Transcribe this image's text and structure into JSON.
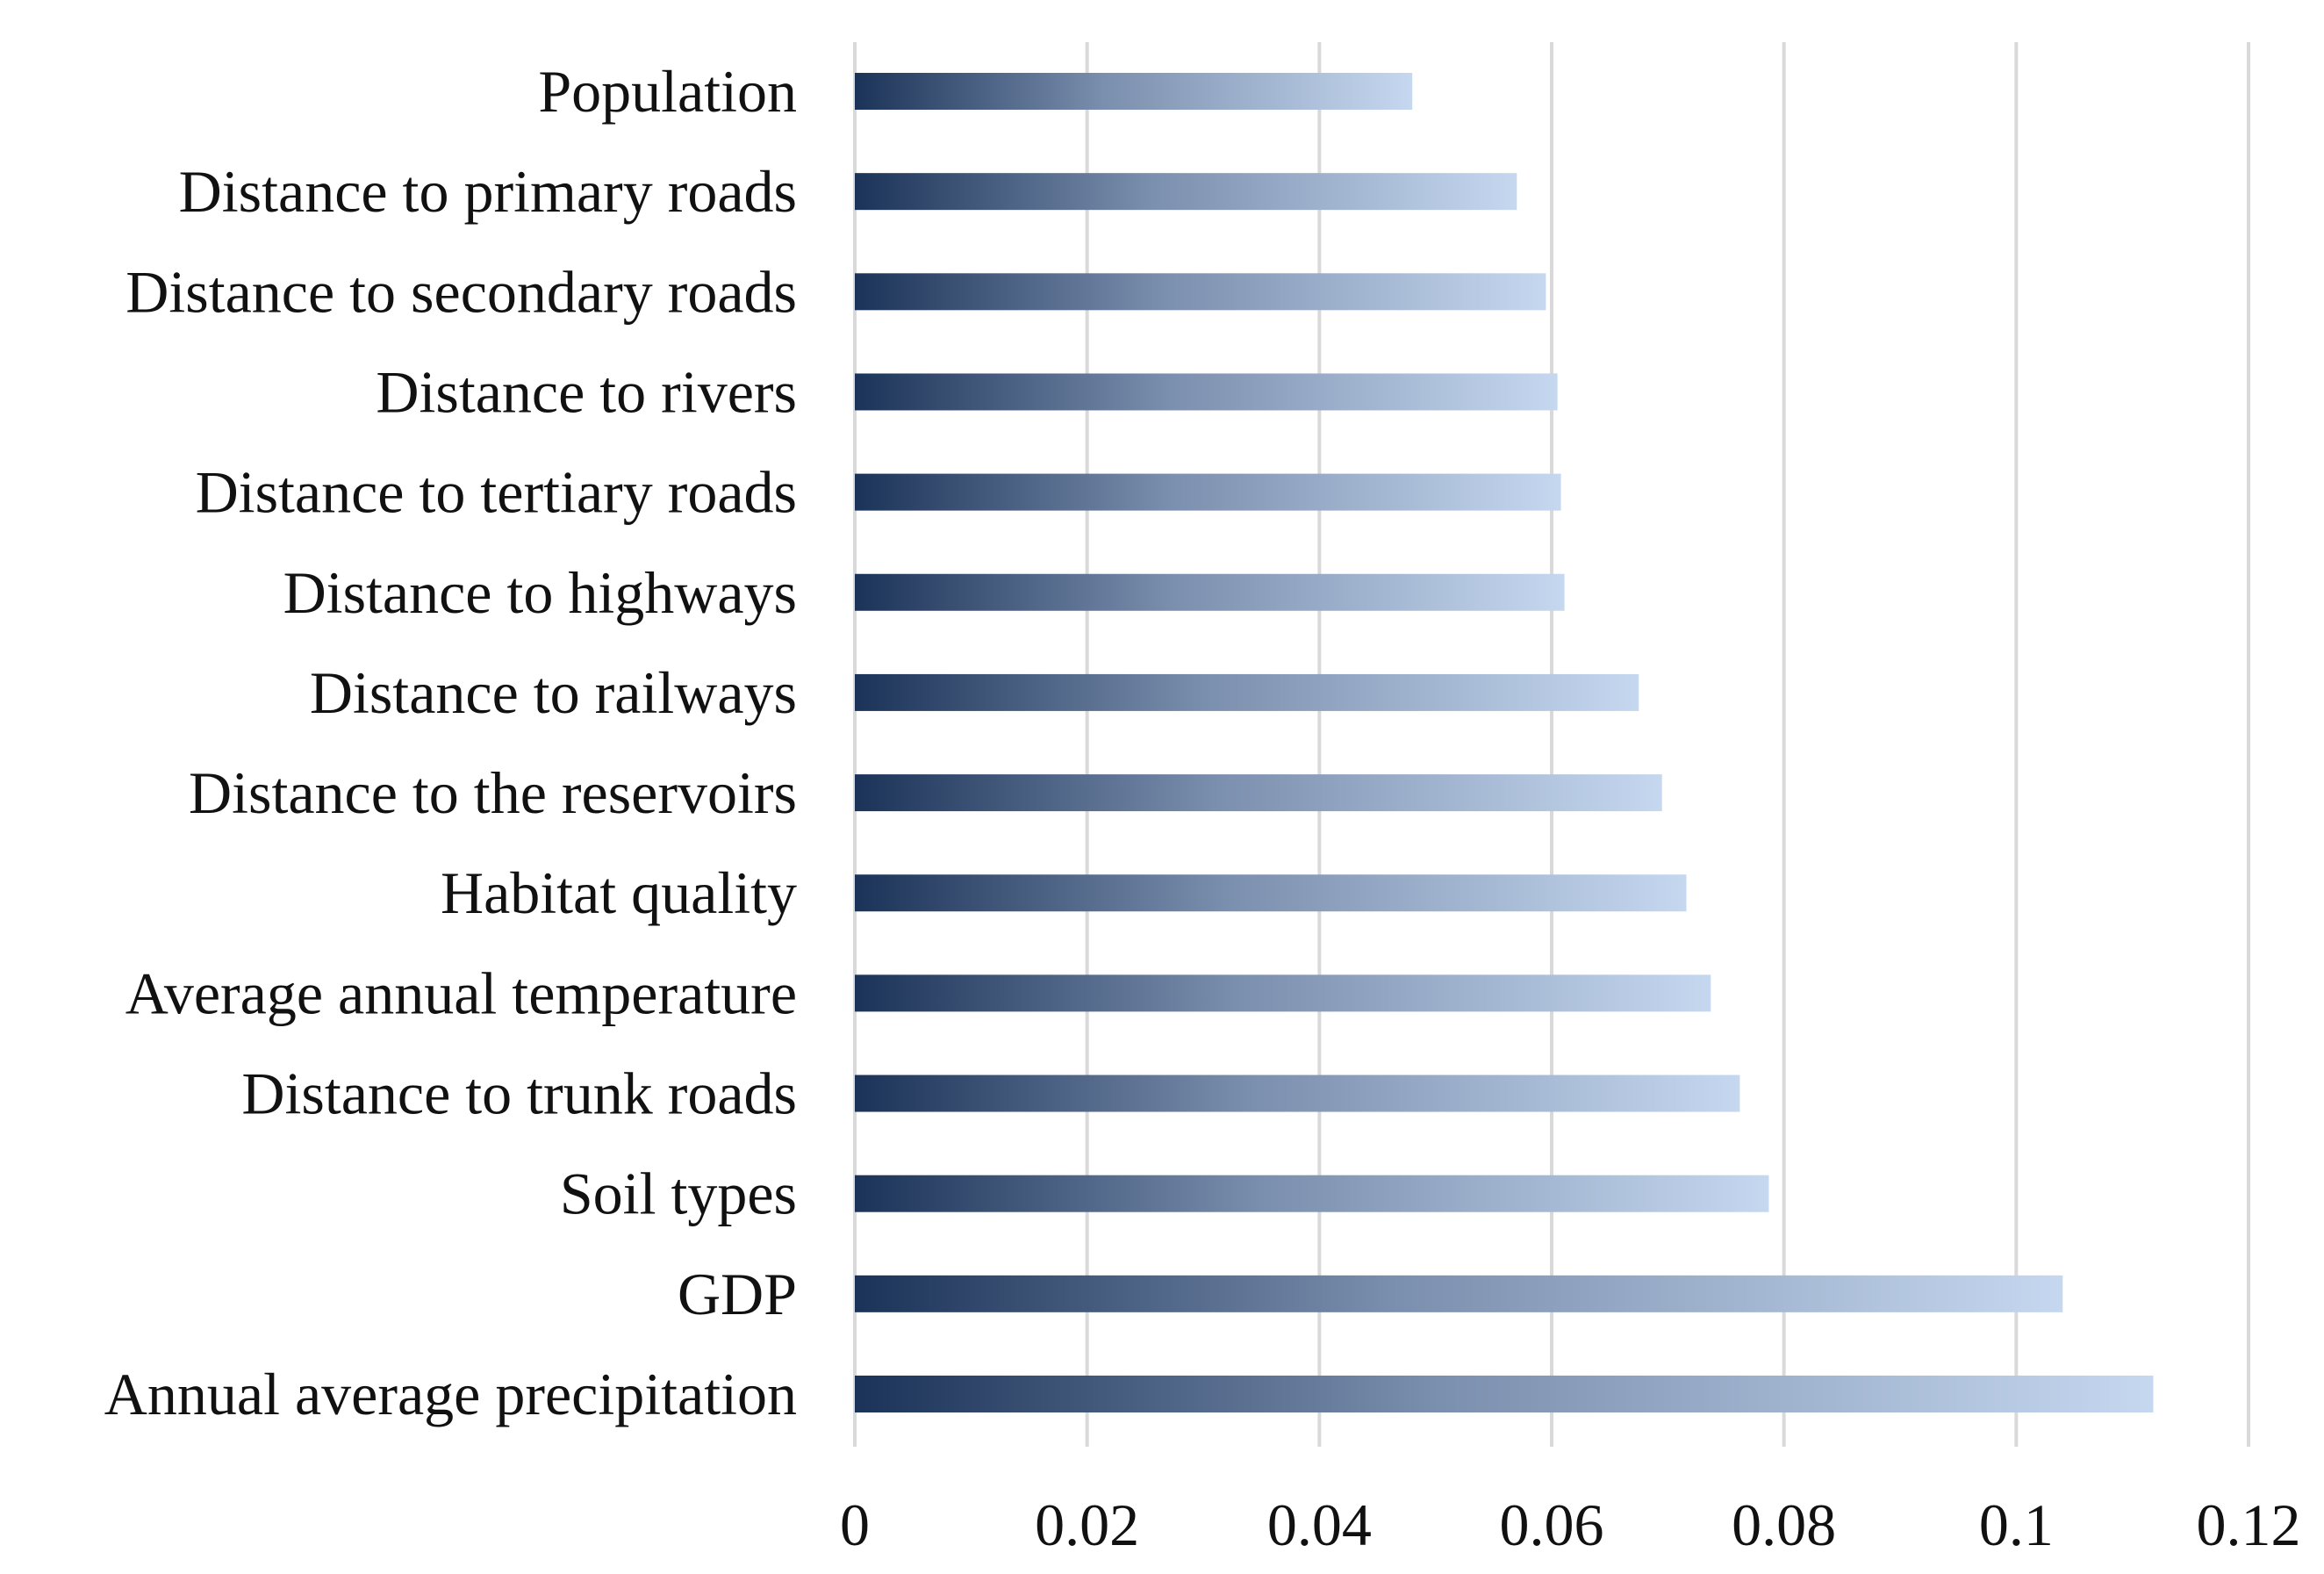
{
  "chart_data": {
    "type": "bar",
    "orientation": "horizontal",
    "title": "",
    "xlabel": "",
    "ylabel": "",
    "categories": [
      "Population",
      "Distance to primary roads",
      "Distance to secondary roads",
      "Distance to rivers",
      "Distance to tertiary roads",
      "Distance to highways",
      "Distance to railways",
      "Distance to the reservoirs",
      "Habitat quality",
      "Average annual temperature",
      "Distance to trunk roads",
      "Soil types",
      "GDP",
      "Annual average precipitation"
    ],
    "values": [
      0.048,
      0.057,
      0.0595,
      0.0605,
      0.0608,
      0.0611,
      0.0675,
      0.0695,
      0.0716,
      0.0737,
      0.0762,
      0.0787,
      0.104,
      0.1118
    ],
    "xlim": [
      0,
      0.12
    ],
    "xticks": [
      0,
      0.02,
      0.04,
      0.06,
      0.08,
      0.1,
      0.12
    ],
    "xtick_labels": [
      "0",
      "0.02",
      "0.04",
      "0.06",
      "0.08",
      "0.1",
      "0.12"
    ],
    "grid": true,
    "legend": "none",
    "colors": {
      "bar_start": "#1b3358",
      "bar_mid": "#7b8fae",
      "bar_end": "#c6d8f0",
      "grid": "#d9d9d9",
      "text": "#111111"
    }
  }
}
